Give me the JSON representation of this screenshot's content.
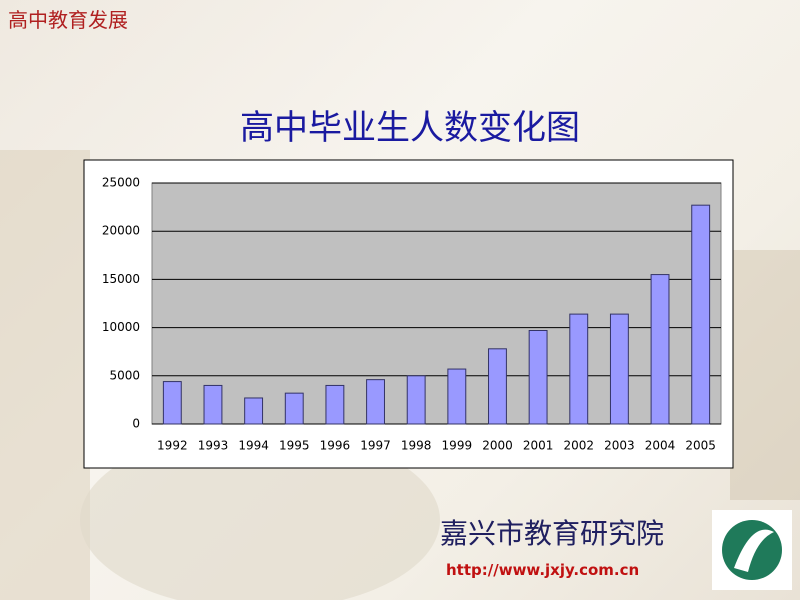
{
  "corner_label": "高中教育发展",
  "organization": "嘉兴市教育研究院",
  "url": "http://www.jxjy.com.cn",
  "chart_data": {
    "type": "bar",
    "title": "高中毕业生人数变化图",
    "categories": [
      "1992",
      "1993",
      "1994",
      "1995",
      "1996",
      "1997",
      "1998",
      "1999",
      "2000",
      "2001",
      "2002",
      "2003",
      "2004",
      "2005"
    ],
    "values": [
      4400,
      4000,
      2700,
      3200,
      4000,
      4600,
      5000,
      5700,
      7800,
      9700,
      11400,
      11400,
      15500,
      22700
    ],
    "color": "#9999ff",
    "ylim": [
      0,
      25000
    ],
    "yticks": [
      0,
      5000,
      10000,
      15000,
      20000,
      25000
    ],
    "grid": true
  }
}
